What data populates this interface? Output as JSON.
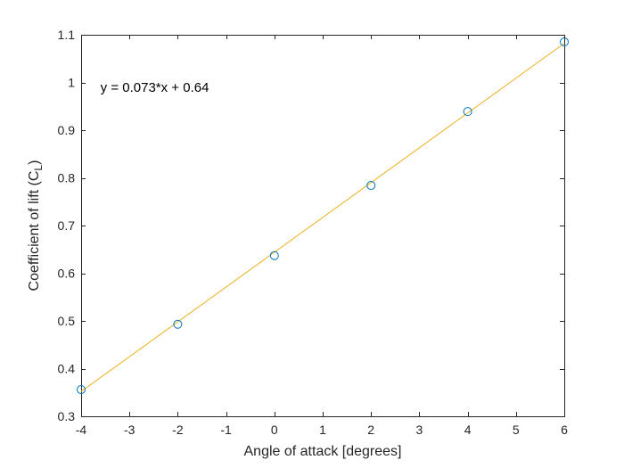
{
  "chart_data": {
    "type": "scatter",
    "title": "",
    "xlabel": "Angle of attack [degrees]",
    "ylabel": {
      "prefix": "Coefficient of lift (C",
      "subscript": "L",
      "suffix": ")"
    },
    "xlim": [
      -4,
      6
    ],
    "ylim": [
      0.3,
      1.1
    ],
    "xticks": [
      -4,
      -3,
      -2,
      -1,
      0,
      1,
      2,
      3,
      4,
      5,
      6
    ],
    "yticks": [
      0.3,
      0.4,
      0.5,
      0.6,
      0.7,
      0.8,
      0.9,
      1,
      1.1
    ],
    "xtick_labels": [
      "-4",
      "-3",
      "-2",
      "-1",
      "0",
      "1",
      "2",
      "3",
      "4",
      "5",
      "6"
    ],
    "ytick_labels": [
      "0.3",
      "0.4",
      "0.5",
      "0.6",
      "0.7",
      "0.8",
      "0.9",
      "1",
      "1.1"
    ],
    "grid": false,
    "series": [
      {
        "kind": "markers",
        "marker": "circle",
        "color": "#0072BD",
        "x": [
          -4,
          -2,
          0,
          2,
          4,
          6
        ],
        "y": [
          0.356,
          0.493,
          0.637,
          0.784,
          0.939,
          1.085
        ]
      },
      {
        "kind": "fit-line",
        "color": "#EDB120",
        "slope": 0.073,
        "intercept": 0.64,
        "x": [
          -4,
          6
        ],
        "y": [
          0.352,
          1.082
        ]
      }
    ],
    "annotation": {
      "text": "y = 0.073*x + 0.64",
      "x": -3.6,
      "y": 0.99
    }
  }
}
